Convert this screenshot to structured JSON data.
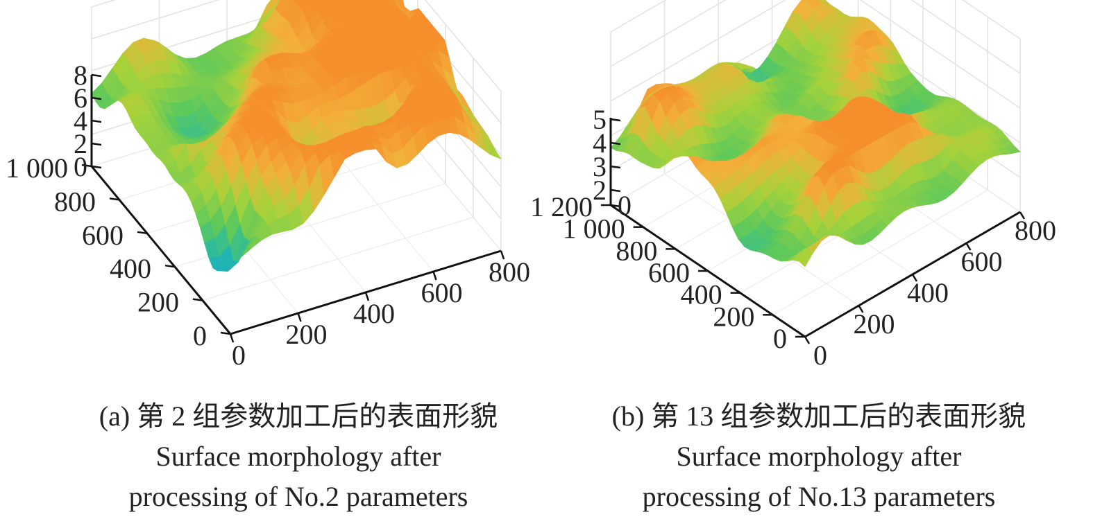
{
  "chart_data": [
    {
      "type": "surface",
      "panel": "a",
      "x": {
        "ticks": [
          0,
          200,
          400,
          600,
          800
        ],
        "range": [
          0,
          800
        ]
      },
      "y": {
        "ticks": [
          0,
          200,
          400,
          600,
          800,
          "1 000"
        ],
        "range": [
          0,
          1000
        ]
      },
      "z": {
        "ticks": [
          0,
          2,
          4,
          6,
          8
        ],
        "range": [
          0,
          8
        ]
      },
      "colormap": [
        "#3a4fc4",
        "#2d8fd8",
        "#1fb7b0",
        "#5ec95a",
        "#a8d23a",
        "#f2b13a",
        "#f58a2a"
      ],
      "grid": true,
      "caption_zh": "(a) 第 2 组参数加工后的表面形貌",
      "caption_en_1": "Surface morphology after",
      "caption_en_2": "processing of No.2 parameters"
    },
    {
      "type": "surface",
      "panel": "b",
      "x": {
        "ticks": [
          0,
          200,
          400,
          600,
          800
        ],
        "range": [
          0,
          800
        ]
      },
      "y": {
        "ticks": [
          0,
          200,
          400,
          600,
          800,
          "1 000",
          "1 200"
        ],
        "range": [
          0,
          1200
        ]
      },
      "z": {
        "ticks": [
          0,
          2,
          3,
          4,
          5
        ],
        "range": [
          0,
          5
        ]
      },
      "colormap": [
        "#3a4fc4",
        "#2d8fd8",
        "#1fb7b0",
        "#5ec95a",
        "#a8d23a",
        "#f2b13a",
        "#f58a2a"
      ],
      "grid": true,
      "caption_zh": "(b) 第 13 组参数加工后的表面形貌",
      "caption_en_1": "Surface morphology after",
      "caption_en_2": "processing of No.13 parameters"
    }
  ]
}
